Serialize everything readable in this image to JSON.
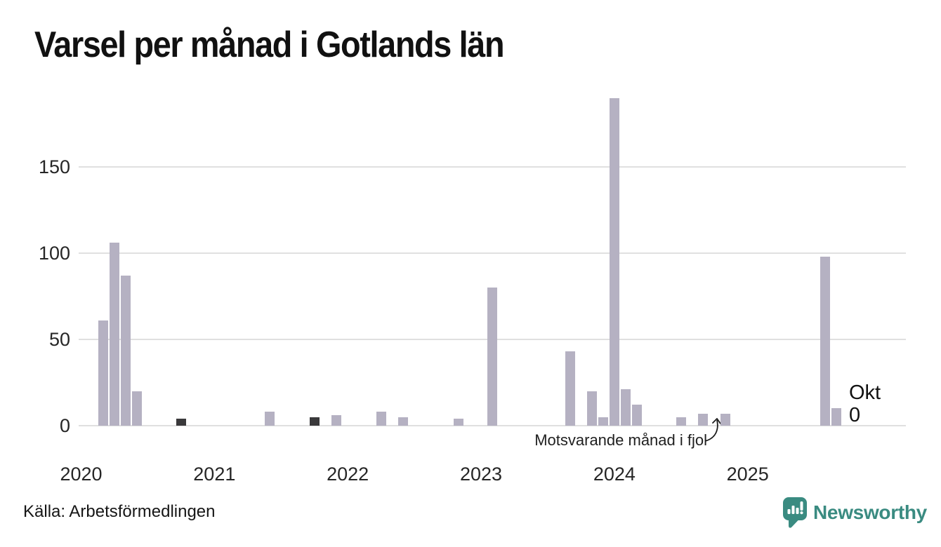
{
  "title": "Varsel per månad i Gotlands län",
  "source": "Källa: Arbetsförmedlingen",
  "branding": {
    "name": "Newsworthy",
    "icon": "newsworthy-speech-bubble-chart-icon",
    "color": "#3A8B81"
  },
  "chart_data": {
    "type": "bar",
    "title": "Varsel per månad i Gotlands län",
    "xlabel": "",
    "ylabel": "",
    "x_start_month": "2020-01",
    "x_end_month": "2025-10",
    "x_tick_labels": [
      "2020",
      "2021",
      "2022",
      "2023",
      "2024",
      "2025"
    ],
    "y_ticks": [
      0,
      50,
      100,
      150
    ],
    "ylim": [
      0,
      197
    ],
    "grid": true,
    "legend": "none",
    "bar_color": "#b5b1c2",
    "highlight_color": "#3a393b",
    "gridline_color": "#e0e0e0",
    "points": [
      {
        "month": "2020-03",
        "value": 61,
        "highlight": false
      },
      {
        "month": "2020-04",
        "value": 106,
        "highlight": false
      },
      {
        "month": "2020-05",
        "value": 87,
        "highlight": false
      },
      {
        "month": "2020-06",
        "value": 20,
        "highlight": false
      },
      {
        "month": "2020-10",
        "value": 4,
        "highlight": true
      },
      {
        "month": "2021-06",
        "value": 8,
        "highlight": false
      },
      {
        "month": "2021-10",
        "value": 5,
        "highlight": true
      },
      {
        "month": "2021-12",
        "value": 6,
        "highlight": false
      },
      {
        "month": "2022-04",
        "value": 8,
        "highlight": false
      },
      {
        "month": "2022-06",
        "value": 5,
        "highlight": false
      },
      {
        "month": "2022-11",
        "value": 4,
        "highlight": false
      },
      {
        "month": "2023-02",
        "value": 80,
        "highlight": false
      },
      {
        "month": "2023-09",
        "value": 43,
        "highlight": false
      },
      {
        "month": "2023-11",
        "value": 20,
        "highlight": false
      },
      {
        "month": "2023-12",
        "value": 5,
        "highlight": false
      },
      {
        "month": "2024-01",
        "value": 190,
        "highlight": false
      },
      {
        "month": "2024-02",
        "value": 21,
        "highlight": false
      },
      {
        "month": "2024-03",
        "value": 12,
        "highlight": false
      },
      {
        "month": "2024-07",
        "value": 5,
        "highlight": false
      },
      {
        "month": "2024-09",
        "value": 7,
        "highlight": false
      },
      {
        "month": "2024-11",
        "value": 7,
        "highlight": false
      },
      {
        "month": "2025-08",
        "value": 98,
        "highlight": false
      },
      {
        "month": "2025-09",
        "value": 10,
        "highlight": false
      },
      {
        "month": "2025-10",
        "value": 0,
        "highlight": false
      }
    ],
    "comparison_annotation": {
      "text": "Motsvarande månad i fjol",
      "points_to_month": "2024-10"
    },
    "current_month_label": {
      "month": "Okt",
      "value": "0",
      "at_month": "2025-10"
    }
  }
}
